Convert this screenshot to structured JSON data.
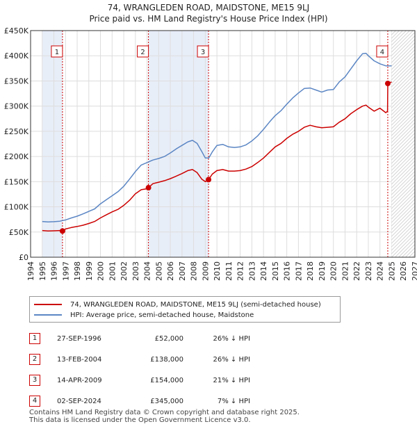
{
  "chart_data": {
    "type": "line",
    "title": "74, WRANGLEDEN ROAD, MAIDSTONE, ME15 9LJ",
    "subtitle": "Price paid vs. HM Land Registry's House Price Index (HPI)",
    "xlim": [
      1994,
      2027
    ],
    "ylim": [
      0,
      450000
    ],
    "y_ticks": [
      0,
      50000,
      100000,
      150000,
      200000,
      250000,
      300000,
      350000,
      400000,
      450000
    ],
    "y_tick_labels": [
      "£0",
      "£50K",
      "£100K",
      "£150K",
      "£200K",
      "£250K",
      "£300K",
      "£350K",
      "£400K",
      "£450K"
    ],
    "x_ticks": [
      1994,
      1995,
      1996,
      1997,
      1998,
      1999,
      2000,
      2001,
      2002,
      2003,
      2004,
      2005,
      2006,
      2007,
      2008,
      2009,
      2010,
      2011,
      2012,
      2013,
      2014,
      2015,
      2016,
      2017,
      2018,
      2019,
      2020,
      2021,
      2022,
      2023,
      2024,
      2025,
      2026,
      2027
    ],
    "grid": true,
    "data_start": 1995,
    "future_start": 2025,
    "series": [
      {
        "name": "74, WRANGLEDEN ROAD, MAIDSTONE, ME15 9LJ (semi-detached house)",
        "color": "#cc0000",
        "x": [
          1995,
          1995.5,
          1996,
          1996.5,
          1996.74,
          1997,
          1997.5,
          1998,
          1998.5,
          1999,
          1999.5,
          2000,
          2000.5,
          2001,
          2001.5,
          2002,
          2002.5,
          2003,
          2003.5,
          2004.0,
          2004.12,
          2004.5,
          2005,
          2005.5,
          2006,
          2006.5,
          2007,
          2007.5,
          2007.9,
          2008.3,
          2008.7,
          2009.0,
          2009.28,
          2009.6,
          2010,
          2010.5,
          2011,
          2011.5,
          2012,
          2012.5,
          2013,
          2013.5,
          2014,
          2014.5,
          2015,
          2015.5,
          2016,
          2016.5,
          2017,
          2017.5,
          2018,
          2018.5,
          2019,
          2019.5,
          2020,
          2020.5,
          2021,
          2021.5,
          2022,
          2022.5,
          2022.8,
          2023,
          2023.5,
          2024,
          2024.5,
          2024.65,
          2024.67,
          2025
        ],
        "y": [
          53000,
          52000,
          52500,
          53000,
          52000,
          56000,
          59000,
          61000,
          63500,
          67000,
          71000,
          78000,
          84000,
          90000,
          95000,
          103000,
          113000,
          126000,
          134000,
          136000,
          138000,
          146000,
          149000,
          152000,
          156000,
          161000,
          166000,
          172000,
          174000,
          168000,
          155000,
          150000,
          154000,
          165000,
          172000,
          174000,
          171000,
          171000,
          172000,
          175000,
          180000,
          188000,
          197000,
          208000,
          219000,
          226000,
          236000,
          244000,
          250000,
          258000,
          262000,
          259000,
          257000,
          258000,
          259000,
          268000,
          275000,
          285000,
          293000,
          300000,
          302000,
          298000,
          290000,
          296000,
          287000,
          290000,
          345000,
          348000
        ]
      },
      {
        "name": "HPI: Average price, semi-detached house, Maidstone",
        "color": "#5b86c4",
        "x": [
          1995,
          1995.5,
          1996,
          1996.5,
          1997,
          1997.5,
          1998,
          1998.5,
          1999,
          1999.5,
          2000,
          2000.5,
          2001,
          2001.5,
          2002,
          2002.5,
          2003,
          2003.5,
          2004,
          2004.5,
          2005,
          2005.5,
          2006,
          2006.5,
          2007,
          2007.5,
          2007.9,
          2008.3,
          2008.7,
          2009.0,
          2009.3,
          2009.6,
          2010,
          2010.5,
          2011,
          2011.5,
          2012,
          2012.5,
          2013,
          2013.5,
          2014,
          2014.5,
          2015,
          2015.5,
          2016,
          2016.5,
          2017,
          2017.5,
          2018,
          2018.5,
          2019,
          2019.5,
          2020,
          2020.5,
          2021,
          2021.5,
          2022,
          2022.5,
          2022.8,
          2023,
          2023.5,
          2024,
          2024.5,
          2025
        ],
        "y": [
          71000,
          70000,
          70500,
          71500,
          74000,
          78000,
          81500,
          86000,
          91000,
          96000,
          106000,
          114000,
          122000,
          130000,
          141000,
          155000,
          170000,
          183000,
          188000,
          193000,
          196000,
          200000,
          207000,
          215000,
          222000,
          229000,
          232000,
          226000,
          210000,
          197000,
          197000,
          209000,
          222000,
          224000,
          219000,
          218000,
          219000,
          223000,
          231000,
          241000,
          254000,
          268000,
          281000,
          291000,
          304000,
          316000,
          326000,
          335000,
          336000,
          332000,
          328000,
          332000,
          333000,
          348000,
          358000,
          374000,
          390000,
          404000,
          405000,
          400000,
          390000,
          384000,
          380000,
          380000
        ]
      }
    ],
    "sales": [
      {
        "label": "1",
        "x": 1996.74,
        "price": 52000
      },
      {
        "label": "2",
        "x": 2004.12,
        "price": 138000
      },
      {
        "label": "3",
        "x": 2009.28,
        "price": 154000
      },
      {
        "label": "4",
        "x": 2024.67,
        "price": 345000
      }
    ]
  },
  "title_line1": "74, WRANGLEDEN ROAD, MAIDSTONE, ME15 9LJ",
  "title_line2": "Price paid vs. HM Land Registry's House Price Index (HPI)",
  "legend": {
    "property_label": "74, WRANGLEDEN ROAD, MAIDSTONE, ME15 9LJ (semi-detached house)",
    "hpi_label": "HPI: Average price, semi-detached house, Maidstone"
  },
  "sales_table": [
    {
      "num": "1",
      "date": "27-SEP-1996",
      "price": "£52,000",
      "hpi": "26% ↓ HPI"
    },
    {
      "num": "2",
      "date": "13-FEB-2004",
      "price": "£138,000",
      "hpi": "26% ↓ HPI"
    },
    {
      "num": "3",
      "date": "14-APR-2009",
      "price": "£154,000",
      "hpi": "21% ↓ HPI"
    },
    {
      "num": "4",
      "date": "02-SEP-2024",
      "price": "£345,000",
      "hpi": "7% ↓ HPI"
    }
  ],
  "footer": {
    "line1": "Contains HM Land Registry data © Crown copyright and database right 2025.",
    "line2": "This data is licensed under the Open Government Licence v3.0."
  },
  "colors": {
    "property": "#cc0000",
    "hpi": "#5b86c4",
    "band": "#e8eef8",
    "grid": "#dddddd"
  }
}
